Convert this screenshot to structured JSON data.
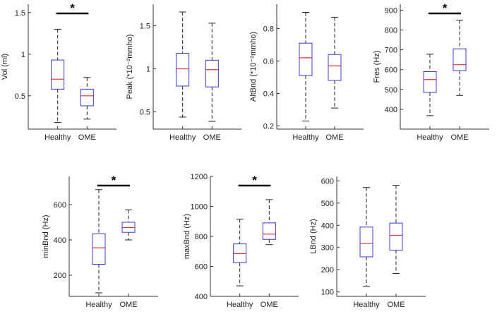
{
  "colors": {
    "box": "#3b3bd1",
    "median": "#e0303a",
    "whisker": "#222222",
    "axis": "#333333",
    "bar": "#000000"
  },
  "chart_data": [
    {
      "type": "boxplot",
      "ylabel": "Vol (ml)",
      "categories": [
        "Healthy",
        "OME"
      ],
      "ylim": [
        0.1,
        1.6
      ],
      "yticks": [
        0.5,
        1,
        1.5
      ],
      "ytick_labels": [
        "0.5",
        "1",
        "1.5"
      ],
      "boxes": [
        {
          "min": 0.18,
          "q1": 0.58,
          "median": 0.7,
          "q3": 0.93,
          "max": 1.3
        },
        {
          "min": 0.22,
          "q1": 0.38,
          "median": 0.5,
          "q3": 0.58,
          "max": 0.72
        }
      ],
      "significance": "*"
    },
    {
      "type": "boxplot",
      "ylabel": "Peak (*10⁻²mmho)",
      "categories": [
        "Healthy",
        "OME"
      ],
      "ylim": [
        0.3,
        1.75
      ],
      "yticks": [
        0.5,
        1,
        1.5
      ],
      "ytick_labels": [
        "0.5",
        "1",
        "1.5"
      ],
      "boxes": [
        {
          "min": 0.44,
          "q1": 0.8,
          "median": 1.0,
          "q3": 1.18,
          "max": 1.66
        },
        {
          "min": 0.39,
          "q1": 0.79,
          "median": 0.99,
          "q3": 1.1,
          "max": 1.53
        }
      ],
      "significance": ""
    },
    {
      "type": "boxplot",
      "ylabel": "AltBnd (*10⁻²mmho)",
      "categories": [
        "Healthy",
        "OME"
      ],
      "ylim": [
        0.18,
        0.95
      ],
      "yticks": [
        0.2,
        0.4,
        0.6,
        0.8
      ],
      "ytick_labels": [
        "0.2",
        "0.4",
        "0.6",
        "0.8"
      ],
      "boxes": [
        {
          "min": 0.23,
          "q1": 0.51,
          "median": 0.62,
          "q3": 0.71,
          "max": 0.9
        },
        {
          "min": 0.31,
          "q1": 0.48,
          "median": 0.57,
          "q3": 0.64,
          "max": 0.87
        }
      ],
      "significance": ""
    },
    {
      "type": "boxplot",
      "ylabel": "Fres (Hz)",
      "categories": [
        "Healthy",
        "OME"
      ],
      "ylim": [
        300,
        930
      ],
      "yticks": [
        400,
        500,
        600,
        700,
        800,
        900
      ],
      "ytick_labels": [
        "400",
        "500",
        "600",
        "700",
        "800",
        "900"
      ],
      "boxes": [
        {
          "min": 368,
          "q1": 485,
          "median": 550,
          "q3": 590,
          "max": 678
        },
        {
          "min": 470,
          "q1": 595,
          "median": 625,
          "q3": 705,
          "max": 850
        }
      ],
      "significance": "*"
    },
    {
      "type": "boxplot",
      "ylabel": "minBnd (Hz)",
      "categories": [
        "Healthy",
        "OME"
      ],
      "ylim": [
        80,
        760
      ],
      "yticks": [
        200,
        400,
        600
      ],
      "ytick_labels": [
        "200",
        "400",
        "600"
      ],
      "boxes": [
        {
          "min": 100,
          "q1": 262,
          "median": 355,
          "q3": 435,
          "max": 685
        },
        {
          "min": 400,
          "q1": 443,
          "median": 470,
          "q3": 500,
          "max": 570
        }
      ],
      "significance": "*"
    },
    {
      "type": "boxplot",
      "ylabel": "maxBnd (Hz)",
      "categories": [
        "Healthy",
        "OME"
      ],
      "ylim": [
        400,
        1200
      ],
      "yticks": [
        400,
        600,
        800,
        1000,
        1200
      ],
      "ytick_labels": [
        "400",
        "600",
        "800",
        "1000",
        "1200"
      ],
      "boxes": [
        {
          "min": 470,
          "q1": 625,
          "median": 685,
          "q3": 750,
          "max": 915
        },
        {
          "min": 745,
          "q1": 780,
          "median": 815,
          "q3": 890,
          "max": 1045
        }
      ],
      "significance": "*"
    },
    {
      "type": "boxplot",
      "ylabel": "LBnd (Hz)",
      "categories": [
        "Healthy",
        "OME"
      ],
      "ylim": [
        80,
        620
      ],
      "yticks": [
        100,
        200,
        300,
        400,
        500,
        600
      ],
      "ytick_labels": [
        "100",
        "200",
        "300",
        "400",
        "500",
        "600"
      ],
      "boxes": [
        {
          "min": 125,
          "q1": 258,
          "median": 318,
          "q3": 392,
          "max": 570
        },
        {
          "min": 183,
          "q1": 288,
          "median": 355,
          "q3": 410,
          "max": 580
        }
      ],
      "significance": ""
    }
  ]
}
